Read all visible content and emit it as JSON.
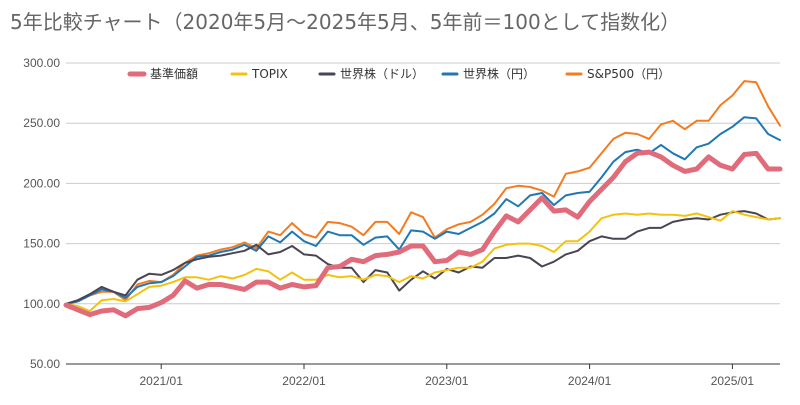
{
  "chart_data": {
    "type": "line",
    "title": "5年比較チャート（2020年5月～2025年5月、5年前＝100として指数化）",
    "xlabel": "",
    "ylabel": "",
    "x": [
      "2020/05",
      "2020/06",
      "2020/07",
      "2020/08",
      "2020/09",
      "2020/10",
      "2020/11",
      "2020/12",
      "2021/01",
      "2021/02",
      "2021/03",
      "2021/04",
      "2021/05",
      "2021/06",
      "2021/07",
      "2021/08",
      "2021/09",
      "2021/10",
      "2021/11",
      "2021/12",
      "2022/01",
      "2022/02",
      "2022/03",
      "2022/04",
      "2022/05",
      "2022/06",
      "2022/07",
      "2022/08",
      "2022/09",
      "2022/10",
      "2022/11",
      "2022/12",
      "2023/01",
      "2023/02",
      "2023/03",
      "2023/04",
      "2023/05",
      "2023/06",
      "2023/07",
      "2023/08",
      "2023/09",
      "2023/10",
      "2023/11",
      "2023/12",
      "2024/01",
      "2024/02",
      "2024/03",
      "2024/04",
      "2024/05",
      "2024/06",
      "2024/07",
      "2024/08",
      "2024/09",
      "2024/10",
      "2024/11",
      "2024/12",
      "2025/01",
      "2025/02",
      "2025/03",
      "2025/04",
      "2025/05"
    ],
    "x_tick_labels": [
      "2021/01",
      "2022/01",
      "2023/01",
      "2024/01",
      "2025/01"
    ],
    "x_tick_indices": [
      8,
      20,
      32,
      44,
      56
    ],
    "ylim": [
      50,
      300
    ],
    "y_ticks": [
      50,
      100,
      150,
      200,
      250,
      300
    ],
    "y_tick_labels": [
      "50.00",
      "100.00",
      "150.00",
      "200.00",
      "250.00",
      "300.00"
    ],
    "grid": true,
    "legend_position": "top",
    "series": [
      {
        "name": "基準価額",
        "color": "#e06b7a",
        "values": [
          99,
          95,
          91,
          94,
          95,
          90,
          96,
          97,
          101,
          107,
          119,
          113,
          116,
          116,
          114,
          112,
          118,
          118,
          113,
          116,
          114,
          115,
          130,
          131,
          137,
          135,
          140,
          141,
          143,
          148,
          148,
          135,
          136,
          143,
          141,
          145,
          160,
          173,
          168,
          178,
          188,
          177,
          178,
          172,
          185,
          195,
          205,
          218,
          225,
          226,
          222,
          215,
          210,
          212,
          222,
          215,
          212,
          224,
          225,
          212,
          212
        ]
      },
      {
        "name": "TOPIX",
        "color": "#f4c20d",
        "values": [
          100,
          98,
          94,
          103,
          104,
          102,
          108,
          114,
          115,
          118,
          122,
          122,
          120,
          123,
          121,
          124,
          129,
          127,
          120,
          126,
          120,
          120,
          124,
          122,
          123,
          120,
          124,
          123,
          118,
          123,
          121,
          126,
          128,
          130,
          130,
          135,
          146,
          149,
          150,
          150,
          148,
          143,
          152,
          152,
          160,
          171,
          174,
          175,
          174,
          175,
          174,
          174,
          173,
          175,
          172,
          169,
          177,
          174,
          172,
          170,
          171
        ]
      },
      {
        "name": "世界株（ドル）",
        "color": "#4a4453",
        "values": [
          100,
          103,
          108,
          114,
          110,
          107,
          120,
          125,
          124,
          128,
          134,
          137,
          139,
          140,
          142,
          144,
          149,
          141,
          143,
          148,
          141,
          140,
          133,
          130,
          130,
          118,
          128,
          126,
          111,
          120,
          127,
          121,
          129,
          126,
          131,
          130,
          138,
          138,
          140,
          138,
          131,
          135,
          141,
          144,
          152,
          156,
          154,
          154,
          160,
          163,
          163,
          168,
          170,
          171,
          170,
          174,
          176,
          177,
          175,
          170,
          171
        ]
      },
      {
        "name": "世界株（円）",
        "color": "#1f77b4",
        "values": [
          100,
          102,
          107,
          112,
          110,
          105,
          114,
          117,
          118,
          123,
          131,
          139,
          140,
          143,
          145,
          149,
          144,
          156,
          151,
          160,
          152,
          148,
          160,
          157,
          157,
          149,
          155,
          156,
          145,
          161,
          160,
          154,
          160,
          158,
          163,
          168,
          175,
          187,
          181,
          190,
          192,
          182,
          190,
          192,
          193,
          205,
          218,
          226,
          228,
          225,
          232,
          225,
          220,
          230,
          233,
          241,
          247,
          255,
          254,
          241,
          236
        ]
      },
      {
        "name": "S&P500（円）",
        "color": "#f47b20",
        "values": [
          100,
          102,
          107,
          110,
          110,
          103,
          116,
          119,
          118,
          124,
          134,
          140,
          142,
          145,
          147,
          151,
          146,
          160,
          157,
          167,
          158,
          155,
          168,
          167,
          164,
          157,
          168,
          168,
          158,
          176,
          172,
          155,
          162,
          166,
          168,
          174,
          183,
          196,
          198,
          197,
          194,
          189,
          208,
          210,
          213,
          225,
          237,
          242,
          241,
          237,
          249,
          252,
          245,
          252,
          252,
          265,
          273,
          285,
          284,
          264,
          248
        ]
      }
    ]
  }
}
